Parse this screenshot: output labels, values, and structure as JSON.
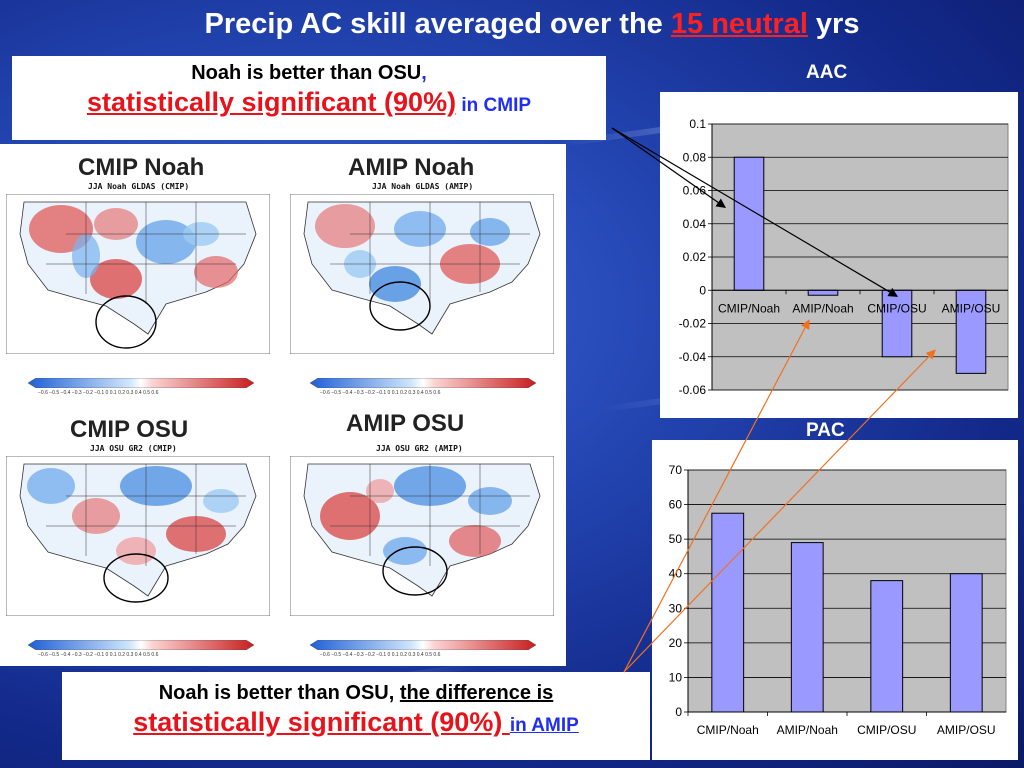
{
  "slide": {
    "title_pre": "Precip AC skill averaged over the ",
    "title_highlight": "15 neutral",
    "title_post": " yrs"
  },
  "note_top": {
    "line1_text": "Noah is better than OSU",
    "line1_comma": ",",
    "line2_red": "statistically significant (90%)",
    "line2_blue": " in CMIP"
  },
  "note_bottom": {
    "line1_text": "Noah is better than OSU, ",
    "line1_underlined": "the difference is",
    "line2_red": "statistically significant (90%) ",
    "line2_blue": "in AMIP"
  },
  "maps": [
    {
      "label": "CMIP Noah",
      "subtitle": "JJA Noah GLDAS (CMIP)"
    },
    {
      "label": "AMIP Noah",
      "subtitle": "JJA Noah GLDAS (AMIP)"
    },
    {
      "label": "CMIP OSU",
      "subtitle": "JJA OSU GR2 (CMIP)"
    },
    {
      "label": "AMIP OSU",
      "subtitle": "JJA OSU GR2 (AMIP)"
    }
  ],
  "colorbar_ticks": "−0.6 −0.5 −0.4 −0.3 −0.2 −0.1 0 0.1 0.2 0.3 0.4 0.5 0.6",
  "colors": {
    "bar_fill": "#9999ff",
    "plot_bg": "#c0c0c0",
    "arrow_black": "#000000",
    "arrow_orange": "#f07020"
  },
  "chart_data": [
    {
      "type": "bar",
      "title": "AAC",
      "categories": [
        "CMIP/Noah",
        "AMIP/Noah",
        "CMIP/OSU",
        "AMIP/OSU"
      ],
      "values": [
        0.08,
        -0.003,
        -0.04,
        -0.05
      ],
      "ylim": [
        -0.06,
        0.1
      ],
      "yticks": [
        "0.1",
        "0.08",
        "0.06",
        "0.04",
        "0.02",
        "0",
        "-0.02",
        "-0.04",
        "-0.06"
      ],
      "grid": true
    },
    {
      "type": "bar",
      "title": "PAC",
      "categories": [
        "CMIP/Noah",
        "AMIP/Noah",
        "CMIP/OSU",
        "AMIP/OSU"
      ],
      "values": [
        57.5,
        49,
        38,
        40
      ],
      "ylim": [
        0,
        70
      ],
      "yticks": [
        "70",
        "60",
        "50",
        "40",
        "30",
        "20",
        "10",
        "0"
      ],
      "grid": true
    }
  ]
}
